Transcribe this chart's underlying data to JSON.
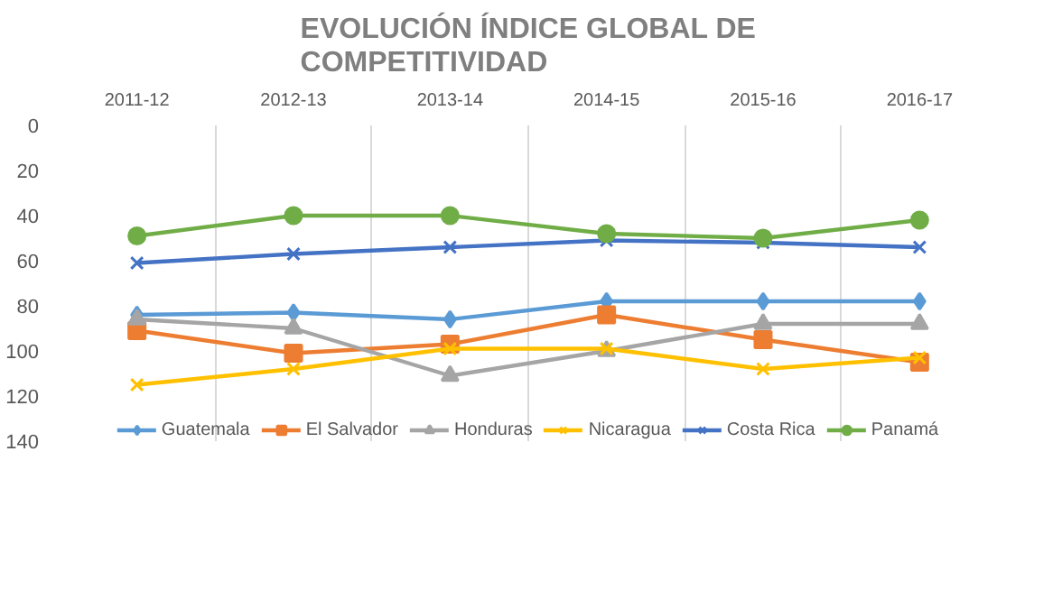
{
  "chart_data": {
    "type": "line",
    "title": "EVOLUCIÓN ÍNDICE GLOBAL DE COMPETITIVIDAD",
    "categories": [
      "2011-12",
      "2012-13",
      "2013-14",
      "2014-15",
      "2015-16",
      "2016-17"
    ],
    "series": [
      {
        "name": "Guatemala",
        "color": "#5b9bd5",
        "marker": "diamond",
        "values": [
          84,
          83,
          86,
          78,
          78,
          78
        ]
      },
      {
        "name": "El Salvador",
        "color": "#ed7d31",
        "marker": "square",
        "values": [
          91,
          101,
          97,
          84,
          95,
          105
        ]
      },
      {
        "name": "Honduras",
        "color": "#a5a5a5",
        "marker": "triangle",
        "values": [
          86,
          90,
          111,
          100,
          88,
          88
        ]
      },
      {
        "name": "Nicaragua",
        "color": "#ffc000",
        "marker": "cross",
        "values": [
          115,
          108,
          99,
          99,
          108,
          103
        ]
      },
      {
        "name": "Costa Rica",
        "color": "#4472c4",
        "marker": "cross",
        "values": [
          61,
          57,
          54,
          51,
          52,
          54
        ]
      },
      {
        "name": "Panamá",
        "color": "#70ad47",
        "marker": "circle",
        "values": [
          49,
          40,
          40,
          48,
          50,
          42
        ]
      }
    ],
    "ylim": [
      140,
      0
    ],
    "yticks": [
      0,
      20,
      40,
      60,
      80,
      100,
      120,
      140
    ],
    "grid": "x",
    "legend": "bottom",
    "line_style": "solid"
  }
}
